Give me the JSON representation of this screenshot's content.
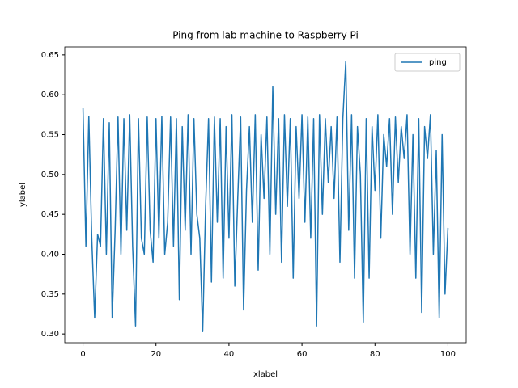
{
  "chart_data": {
    "type": "line",
    "title": "Ping from lab machine to Raspberry Pi",
    "x_label": "xlabel",
    "y_label": "ylabel",
    "x": [
      0,
      0.8,
      1.6,
      2.4,
      3.2,
      4,
      4.8,
      5.6,
      6.4,
      7.2,
      8,
      8.8,
      9.6,
      10.4,
      11.2,
      12,
      12.8,
      13.6,
      14.4,
      15.2,
      16,
      16.8,
      17.6,
      18.4,
      19.2,
      20,
      20.8,
      21.6,
      22.4,
      23.2,
      24,
      24.8,
      25.6,
      26.4,
      27.2,
      28,
      28.8,
      29.6,
      30.4,
      31.2,
      32,
      32.8,
      33.6,
      34.4,
      35.2,
      36,
      36.8,
      37.6,
      38.4,
      39.2,
      40,
      40.8,
      41.6,
      42.4,
      43.2,
      44,
      44.8,
      45.6,
      46.4,
      47.2,
      48,
      48.8,
      49.6,
      50.4,
      51.2,
      52,
      52.8,
      53.6,
      54.4,
      55.2,
      56,
      56.8,
      57.6,
      58.4,
      59.2,
      60,
      60.8,
      61.6,
      62.4,
      63.2,
      64,
      64.8,
      65.6,
      66.4,
      67.2,
      68,
      68.8,
      69.6,
      70.4,
      71.2,
      72,
      72.8,
      73.6,
      74.4,
      75.2,
      76,
      76.8,
      77.6,
      78.4,
      79.2,
      80,
      80.8,
      81.6,
      82.4,
      83.2,
      84,
      84.8,
      85.6,
      86.4,
      87.2,
      88,
      88.8,
      89.6,
      90.4,
      91.2,
      92,
      92.8,
      93.6,
      94.4,
      95.2,
      96,
      96.8,
      97.6,
      98.4,
      99.2,
      100
    ],
    "series": [
      {
        "name": "ping",
        "color": "#1f77b4",
        "values": [
          0.584,
          0.41,
          0.573,
          0.42,
          0.32,
          0.425,
          0.41,
          0.57,
          0.4,
          0.565,
          0.32,
          0.43,
          0.572,
          0.4,
          0.57,
          0.43,
          0.575,
          0.41,
          0.31,
          0.57,
          0.42,
          0.4,
          0.572,
          0.43,
          0.39,
          0.57,
          0.42,
          0.573,
          0.4,
          0.44,
          0.572,
          0.41,
          0.57,
          0.343,
          0.56,
          0.43,
          0.575,
          0.4,
          0.57,
          0.45,
          0.42,
          0.303,
          0.46,
          0.57,
          0.365,
          0.572,
          0.44,
          0.57,
          0.37,
          0.56,
          0.42,
          0.575,
          0.36,
          0.47,
          0.572,
          0.33,
          0.48,
          0.56,
          0.44,
          0.575,
          0.38,
          0.55,
          0.47,
          0.572,
          0.4,
          0.61,
          0.45,
          0.57,
          0.39,
          0.575,
          0.46,
          0.57,
          0.37,
          0.56,
          0.47,
          0.575,
          0.44,
          0.572,
          0.42,
          0.57,
          0.31,
          0.575,
          0.45,
          0.57,
          0.49,
          0.56,
          0.47,
          0.572,
          0.39,
          0.57,
          0.642,
          0.43,
          0.575,
          0.37,
          0.56,
          0.5,
          0.315,
          0.57,
          0.37,
          0.56,
          0.48,
          0.575,
          0.42,
          0.55,
          0.51,
          0.57,
          0.45,
          0.572,
          0.49,
          0.56,
          0.52,
          0.575,
          0.4,
          0.55,
          0.37,
          0.57,
          0.327,
          0.56,
          0.52,
          0.575,
          0.4,
          0.53,
          0.32,
          0.55,
          0.35,
          0.433
        ]
      }
    ],
    "xlim": [
      -5,
      105
    ],
    "ylim": [
      0.289,
      0.66
    ],
    "xticks": [
      0,
      20,
      40,
      60,
      80,
      100
    ],
    "yticks": [
      {
        "value": 0.3,
        "label": "0.30"
      },
      {
        "value": 0.35,
        "label": "0.35"
      },
      {
        "value": 0.4,
        "label": "0.40"
      },
      {
        "value": 0.45,
        "label": "0.45"
      },
      {
        "value": 0.5,
        "label": "0.50"
      },
      {
        "value": 0.55,
        "label": "0.55"
      },
      {
        "value": 0.6,
        "label": "0.60"
      },
      {
        "value": 0.65,
        "label": "0.65"
      }
    ],
    "legend": "upper right"
  }
}
